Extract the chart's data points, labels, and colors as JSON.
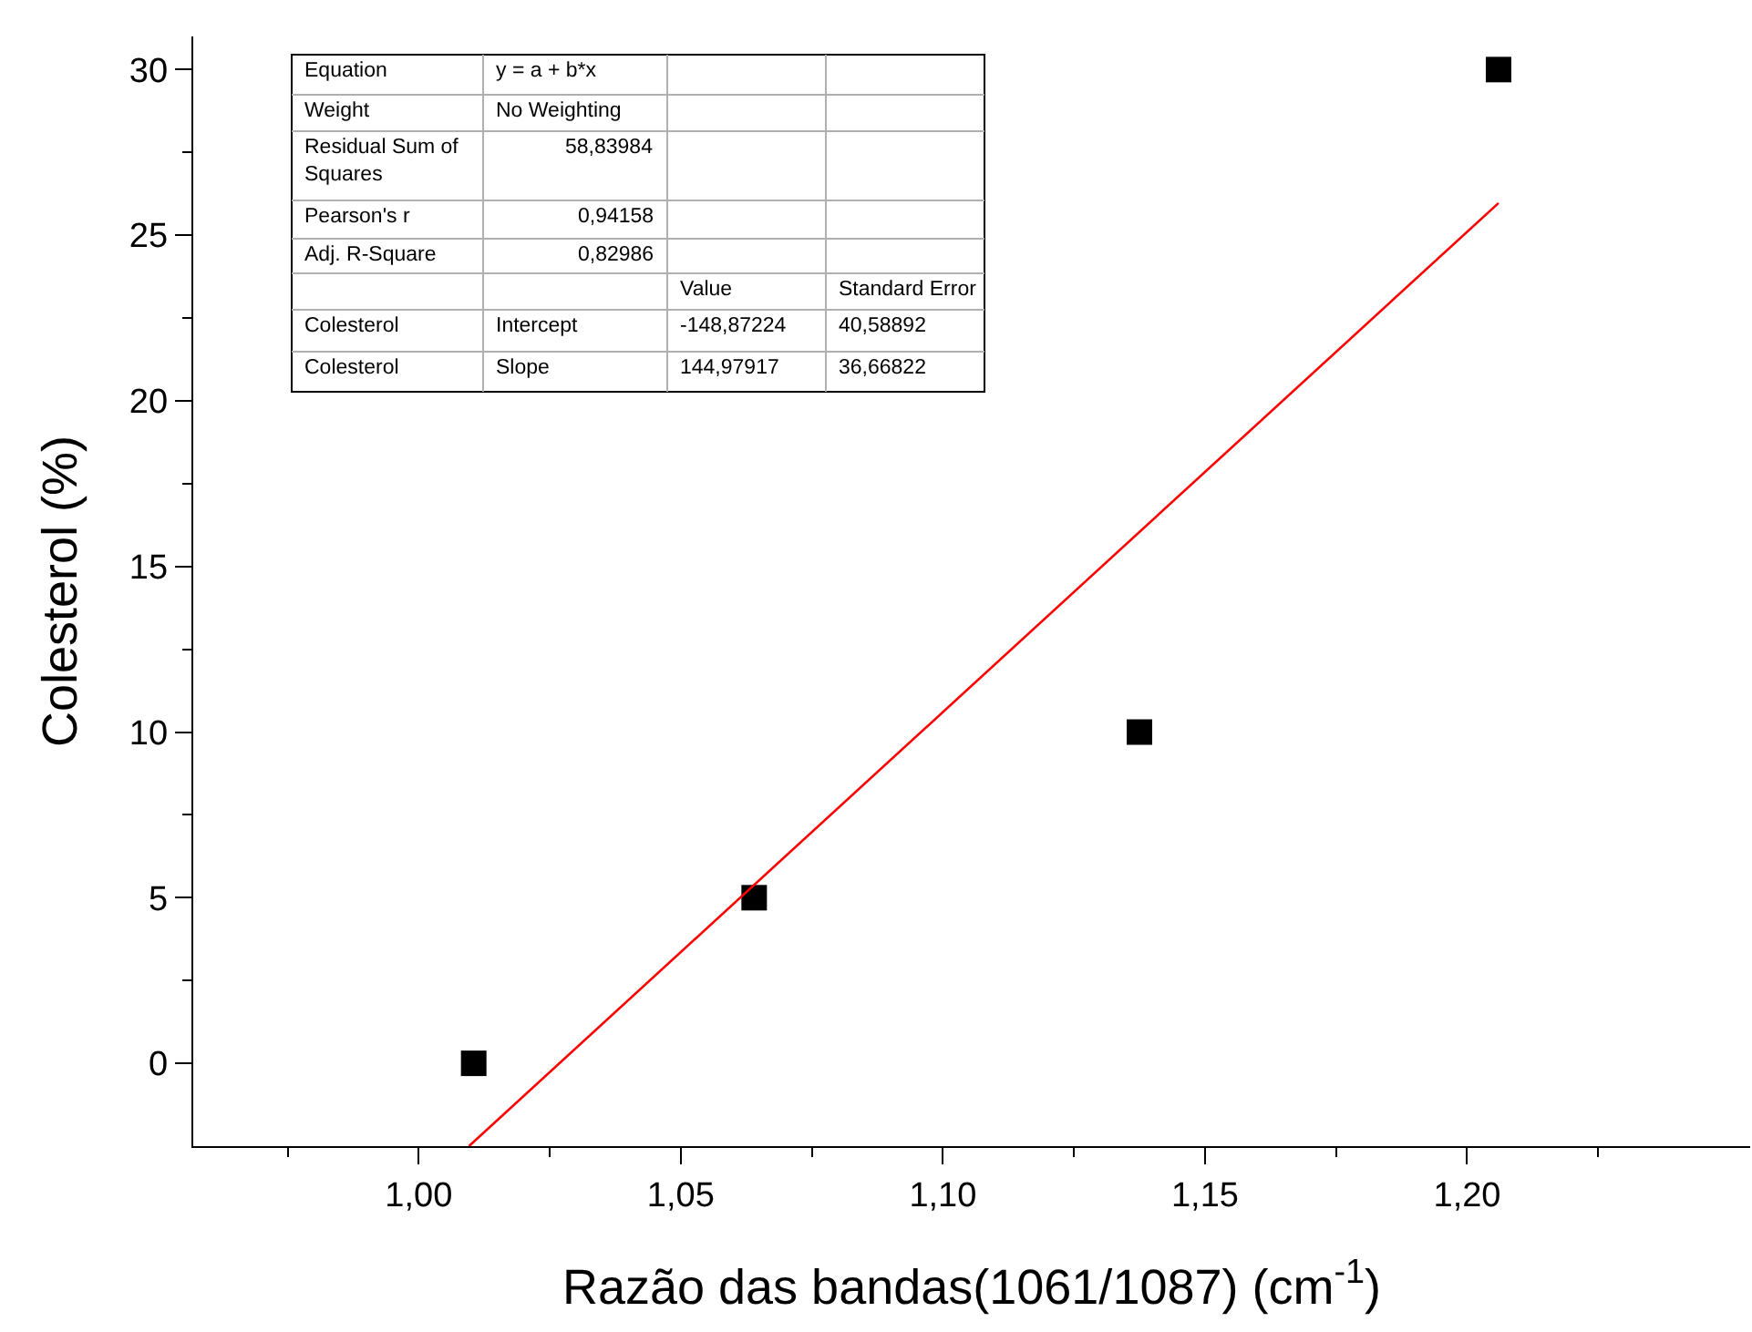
{
  "chart_data": {
    "type": "scatter",
    "xlabel": "Razão das bandas(1061/1087) (cm$^{-1}$)",
    "ylabel": "Colesterol (%)",
    "x": [
      1.0105,
      1.064,
      1.1375,
      1.206
    ],
    "series": [
      {
        "type": "scatter",
        "color": "#000000",
        "marker": "square",
        "values": [
          0,
          5,
          10,
          30
        ]
      },
      {
        "type": "line",
        "color": "#ff0000",
        "marker": "none",
        "line_style": "solid",
        "x": [
          1.0096,
          1.206
        ],
        "values": [
          -2.5,
          25.97
        ]
      }
    ],
    "xlim": [
      0.957,
      1.254
    ],
    "ylim": [
      -2.5,
      31
    ],
    "xticks": [
      {
        "value": 0.975,
        "label": null
      },
      {
        "value": 1.0,
        "label": "1,00"
      },
      {
        "value": 1.025,
        "label": null
      },
      {
        "value": 1.05,
        "label": "1,05"
      },
      {
        "value": 1.075,
        "label": null
      },
      {
        "value": 1.1,
        "label": "1,10"
      },
      {
        "value": 1.125,
        "label": null
      },
      {
        "value": 1.15,
        "label": "1,15"
      },
      {
        "value": 1.175,
        "label": null
      },
      {
        "value": 1.2,
        "label": "1,20"
      },
      {
        "value": 1.225,
        "label": null
      }
    ],
    "yticks": [
      0,
      {
        "value": 2.5,
        "label": null
      },
      5,
      {
        "value": 7.5,
        "label": null
      },
      10,
      {
        "value": 12.5,
        "label": null
      },
      15,
      {
        "value": 17.5,
        "label": null
      },
      20,
      {
        "value": 22.5,
        "label": null
      },
      25,
      {
        "value": 27.5,
        "label": null
      },
      30
    ],
    "annotations": [
      "Equation",
      "y = a + b*x",
      "Weight",
      "No Weighting",
      "Residual Sum of Squares",
      "58,83984",
      "Pearson's r",
      "0,94158",
      "Adj. R-Square",
      "0,82986",
      "Value",
      "Standard Error",
      "Colesterol",
      "Intercept",
      "-148,87224",
      "40,58892",
      "Colesterol",
      "Slope",
      "144,97917",
      "36,66822"
    ]
  }
}
